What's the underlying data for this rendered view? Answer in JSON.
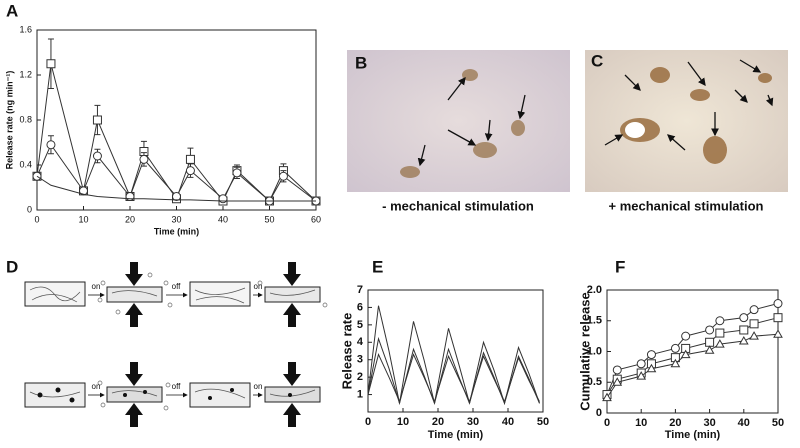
{
  "panel_labels": [
    "A",
    "B",
    "C",
    "D",
    "E",
    "F"
  ],
  "photo_captions": [
    "- mechanical stimulation",
    "+ mechanical stimulation"
  ],
  "diagram": {
    "labels": [
      "on",
      "off",
      "on",
      "on",
      "off",
      "on"
    ]
  },
  "chart_data": [
    {
      "type": "line",
      "x_label": "Time (min)",
      "y_label": "Release rate (ng min⁻¹)",
      "xlim": [
        0,
        60
      ],
      "xticks": [
        0,
        10,
        20,
        30,
        40,
        50,
        60
      ],
      "ylim": [
        0,
        1.6
      ],
      "yticks": [
        0,
        0.4,
        0.8,
        1.2,
        1.6
      ],
      "x": [
        0,
        3,
        10,
        13,
        20,
        23,
        30,
        33,
        40,
        43,
        50,
        53,
        60
      ],
      "series": [
        {
          "marker": "square",
          "color": "#333",
          "values": [
            0.3,
            1.3,
            0.17,
            0.8,
            0.12,
            0.52,
            0.1,
            0.45,
            0.08,
            0.35,
            0.08,
            0.35,
            0.08
          ],
          "errors": [
            0.03,
            0.22,
            0.02,
            0.13,
            0.03,
            0.09,
            0.03,
            0.1,
            0.03,
            0.05,
            0.02,
            0.06,
            0.02
          ]
        },
        {
          "marker": "circle",
          "color": "#333",
          "values": [
            0.3,
            0.58,
            0.17,
            0.48,
            0.12,
            0.45,
            0.12,
            0.35,
            0.1,
            0.33,
            0.08,
            0.3,
            0.08
          ],
          "errors": [
            0.03,
            0.08,
            0.02,
            0.06,
            0.03,
            0.06,
            0.03,
            0.06,
            0.02,
            0.05,
            0.02,
            0.05,
            0.02
          ]
        },
        {
          "marker": "none",
          "color": "#333",
          "values": [
            0.3,
            0.22,
            0.14,
            0.12,
            0.1,
            0.1,
            0.09,
            0.09,
            0.08,
            0.08,
            0.08,
            0.08,
            0.08
          ]
        }
      ]
    },
    {
      "type": "line",
      "x_label": "Time (min)",
      "y_label": "Release rate",
      "xlim": [
        0,
        50
      ],
      "xticks": [
        0,
        10,
        20,
        30,
        40,
        50
      ],
      "ylim": [
        0,
        7
      ],
      "yticks": [
        1,
        2,
        3,
        4,
        5,
        6,
        7
      ],
      "x": [
        0,
        3,
        6,
        9,
        13,
        16,
        19,
        23,
        26,
        29,
        33,
        36,
        39,
        43,
        46,
        49
      ],
      "series": [
        {
          "marker": "none",
          "color": "#333",
          "values": [
            1,
            6.1,
            3.5,
            0.5,
            5.2,
            3,
            0.5,
            4.8,
            2.7,
            0.5,
            4.0,
            2.4,
            0.5,
            3.7,
            2.2,
            0.5
          ]
        },
        {
          "marker": "none",
          "color": "#333",
          "values": [
            1,
            4.2,
            2.5,
            0.5,
            3.6,
            2.1,
            0.5,
            3.6,
            2,
            0.5,
            3.4,
            2,
            0.5,
            3.2,
            1.9,
            0.5
          ]
        },
        {
          "marker": "none",
          "color": "#333",
          "values": [
            1,
            3.3,
            2,
            0.6,
            3.3,
            2,
            0.6,
            3.2,
            1.9,
            0.6,
            3.2,
            1.9,
            0.6,
            3.1,
            1.8,
            0.6
          ]
        }
      ]
    },
    {
      "type": "line",
      "x_label": "Time (min)",
      "y_label": "Cumulative release",
      "xlim": [
        0,
        50
      ],
      "xticks": [
        0,
        10,
        20,
        30,
        40,
        50
      ],
      "ylim": [
        0,
        2
      ],
      "yticks": [
        0,
        0.5,
        {
          "value": 1,
          "label": "1.0"
        },
        1.5,
        {
          "value": 2,
          "label": "2.0"
        }
      ],
      "x": [
        0,
        3,
        10,
        13,
        20,
        23,
        30,
        33,
        40,
        43,
        50
      ],
      "series": [
        {
          "marker": "circle",
          "color": "#333",
          "values": [
            0.3,
            0.7,
            0.8,
            0.95,
            1.05,
            1.25,
            1.35,
            1.5,
            1.55,
            1.68,
            1.78
          ]
        },
        {
          "marker": "square",
          "color": "#333",
          "values": [
            0.3,
            0.55,
            0.65,
            0.8,
            0.9,
            1.05,
            1.15,
            1.3,
            1.35,
            1.45,
            1.55
          ]
        },
        {
          "marker": "triangle",
          "color": "#333",
          "values": [
            0.25,
            0.5,
            0.6,
            0.72,
            0.8,
            0.95,
            1.02,
            1.12,
            1.17,
            1.25,
            1.28
          ]
        }
      ]
    }
  ]
}
